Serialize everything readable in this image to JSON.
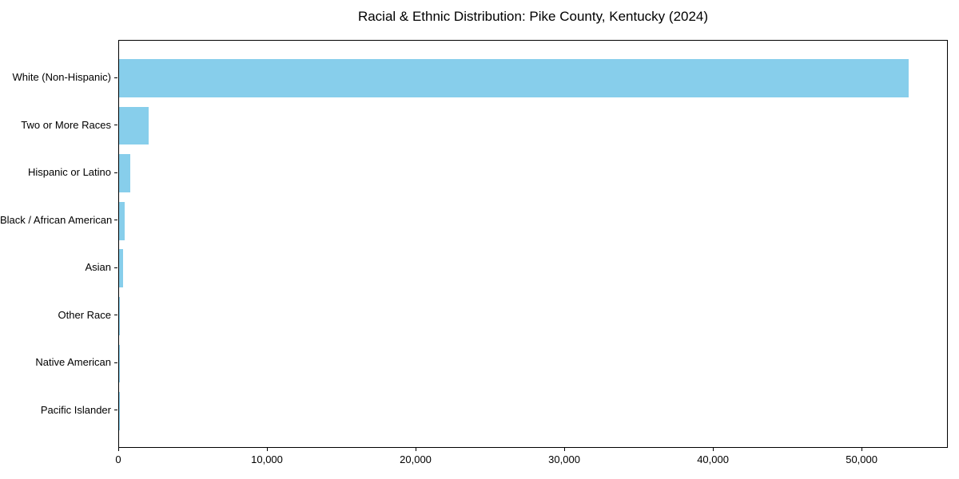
{
  "chart_data": {
    "type": "bar",
    "orientation": "horizontal",
    "title": "Racial & Ethnic Distribution: Pike County, Kentucky (2024)",
    "xlabel": "",
    "ylabel": "",
    "categories": [
      "White (Non-Hispanic)",
      "Two or More Races",
      "Hispanic or Latino",
      "Black / African American",
      "Asian",
      "Other Race",
      "Native American",
      "Pacific Islander"
    ],
    "values": [
      53100,
      1980,
      730,
      350,
      290,
      35,
      20,
      5
    ],
    "xlim": [
      0,
      55800
    ],
    "xticks": [
      0,
      10000,
      20000,
      30000,
      40000,
      50000
    ],
    "xtick_labels": [
      "0",
      "10,000",
      "20,000",
      "30,000",
      "40,000",
      "50,000"
    ],
    "bar_color": "#87CEEB",
    "frame_color": "#000000",
    "grid": false,
    "legend": null
  }
}
